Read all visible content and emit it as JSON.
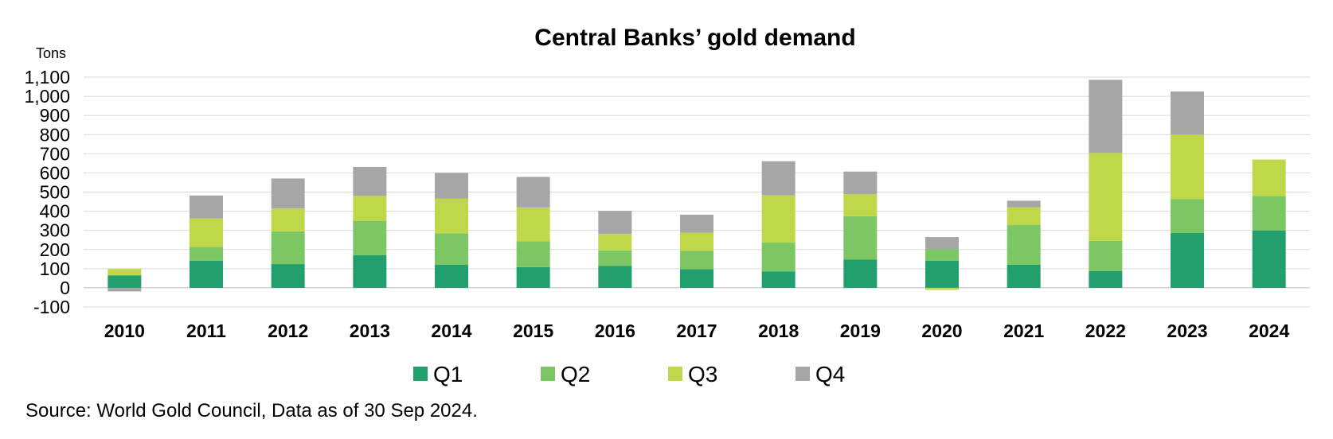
{
  "chart_data": {
    "type": "bar",
    "stacked": true,
    "title": "Central Banks’ gold demand",
    "ylabel": "Tons",
    "xlabel": "",
    "ylim": [
      -100,
      1100
    ],
    "yticks": [
      -100,
      0,
      100,
      200,
      300,
      400,
      500,
      600,
      700,
      800,
      900,
      1000,
      1100
    ],
    "ytick_labels": [
      "-100",
      "0",
      "100",
      "200",
      "300",
      "400",
      "500",
      "600",
      "700",
      "800",
      "900",
      "1,000",
      "1,100"
    ],
    "grid": true,
    "legend_position": "bottom",
    "categories": [
      "2010",
      "2011",
      "2012",
      "2013",
      "2014",
      "2015",
      "2016",
      "2017",
      "2018",
      "2019",
      "2020",
      "2021",
      "2022",
      "2023",
      "2024"
    ],
    "series": [
      {
        "name": "Q1",
        "color": "#21a06e",
        "values": [
          64,
          141,
          124,
          170,
          120,
          108,
          114,
          97,
          86,
          147,
          142,
          120,
          87,
          286,
          300
        ]
      },
      {
        "name": "Q2",
        "color": "#7cc664",
        "values": [
          2,
          73,
          171,
          180,
          165,
          135,
          82,
          96,
          150,
          227,
          59,
          209,
          158,
          177,
          180
        ]
      },
      {
        "name": "Q3",
        "color": "#bfd849",
        "values": [
          33,
          148,
          119,
          130,
          180,
          177,
          85,
          95,
          247,
          115,
          -11,
          92,
          459,
          337,
          190
        ]
      },
      {
        "name": "Q4",
        "color": "#a6a6a6",
        "values": [
          -19,
          120,
          157,
          151,
          135,
          159,
          121,
          94,
          178,
          118,
          64,
          34,
          382,
          225,
          0
        ]
      }
    ]
  },
  "source_note": "Source: World Gold Council, Data as of 30 Sep 2024."
}
